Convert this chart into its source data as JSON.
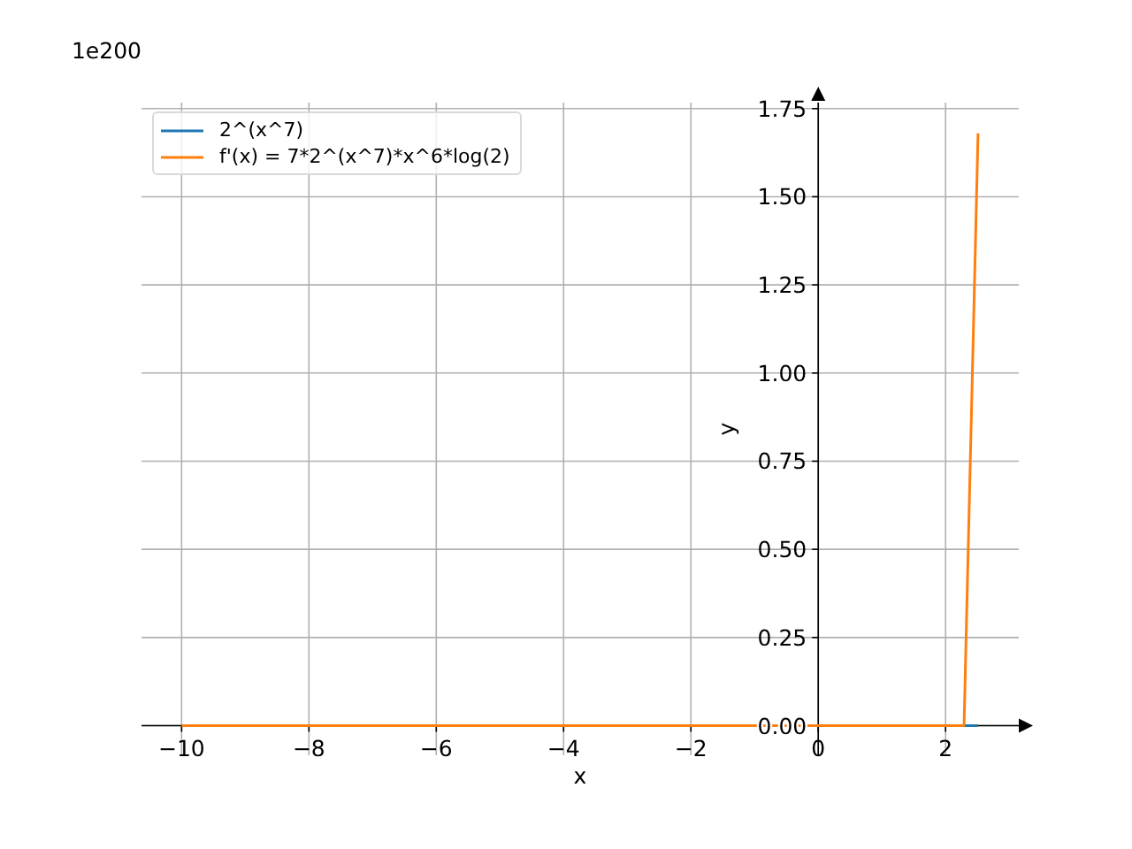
{
  "chart_data": {
    "type": "line",
    "xlabel": "x",
    "ylabel": "y",
    "annotations": [
      "1e200"
    ],
    "x": [
      -10,
      -9,
      -8,
      -7,
      -6,
      -5,
      -4,
      -3,
      -2,
      -1,
      0,
      1,
      2,
      2.29,
      2.51
    ],
    "series": [
      {
        "name": "2^(x^7)",
        "color": "#1f77b4",
        "values": [
          null,
          null,
          null,
          null,
          null,
          null,
          null,
          null,
          null,
          null,
          null,
          null,
          null,
          0,
          0
        ]
      },
      {
        "name": "f'(x) = 7*2^(x^7)*x^6*log(2)",
        "color": "#ff7f0e",
        "values": [
          0,
          0,
          0,
          0,
          0,
          0,
          0,
          0,
          0,
          0,
          0,
          0,
          0,
          0,
          1.68
        ]
      }
    ],
    "xlim": [
      -10.63,
      3.15
    ],
    "ylim": [
      -0.084,
      1.767
    ],
    "xticks": [
      {
        "value": -10,
        "label": "−10"
      },
      {
        "value": -8,
        "label": "−8"
      },
      {
        "value": -6,
        "label": "−6"
      },
      {
        "value": -4,
        "label": "−4"
      },
      {
        "value": -2,
        "label": "−2"
      },
      0,
      2
    ],
    "yticks": [
      {
        "value": 0,
        "label": "0.00"
      },
      {
        "value": 0.25,
        "label": "0.25"
      },
      {
        "value": 0.5,
        "label": "0.50"
      },
      {
        "value": 0.75,
        "label": "0.75"
      },
      {
        "value": 1,
        "label": "1.00"
      },
      {
        "value": 1.25,
        "label": "1.25"
      },
      {
        "value": 1.5,
        "label": "1.50"
      },
      {
        "value": 1.75,
        "label": "1.75"
      }
    ],
    "grid": true,
    "legend": "top left"
  }
}
